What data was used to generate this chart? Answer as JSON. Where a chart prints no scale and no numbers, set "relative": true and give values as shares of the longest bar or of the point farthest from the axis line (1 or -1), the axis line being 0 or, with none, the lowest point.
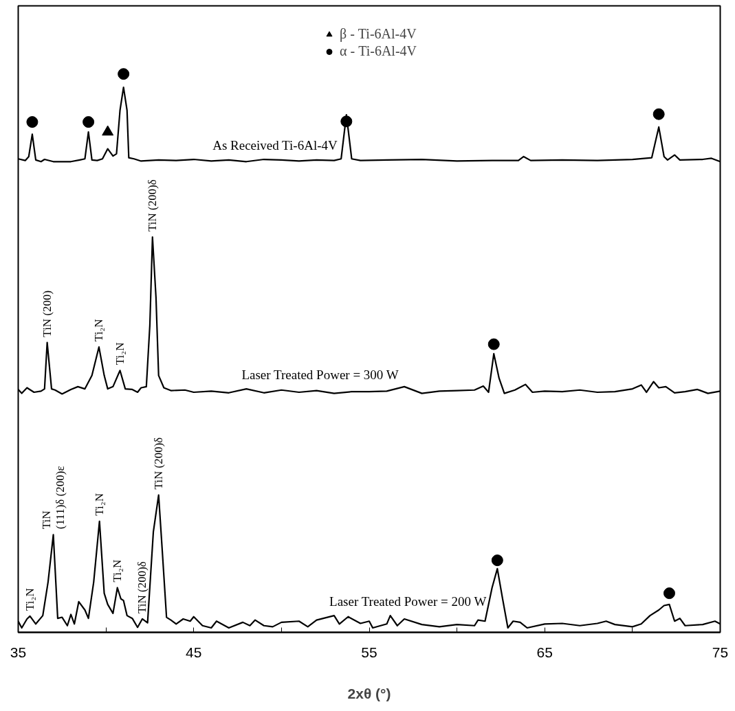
{
  "chart_data": {
    "type": "line",
    "relative": true,
    "xlabel": "2xθ (°)",
    "xlim": [
      35,
      75
    ],
    "xticks": [
      35,
      {
        "value": 40,
        "label": null
      },
      45,
      {
        "value": 50,
        "label": null
      },
      55,
      {
        "value": 60,
        "label": null
      },
      65,
      {
        "value": 70,
        "label": null
      },
      75
    ],
    "grid": false,
    "legend": "top",
    "line_style": "solid",
    "series": [
      {
        "name": "As Received Ti-6Al-4V",
        "color": "#000000",
        "x": [
          35.0,
          35.4,
          35.6,
          35.8,
          36.0,
          36.3,
          36.5,
          37,
          38,
          38.5,
          38.8,
          39.0,
          39.2,
          39.5,
          39.8,
          40.1,
          40.4,
          40.6,
          40.8,
          41.0,
          41.2,
          41.3,
          41.6,
          42,
          43,
          44,
          45,
          46,
          47,
          48,
          49,
          50,
          51,
          52,
          53,
          53.4,
          53.7,
          54.0,
          54.5,
          56,
          58,
          60,
          62,
          63.5,
          63.8,
          64.2,
          66,
          68,
          70,
          71.1,
          71.5,
          71.8,
          72.0,
          72.4,
          72.7,
          74,
          74.5,
          75
        ],
        "values": [
          0.848,
          0.845,
          0.852,
          0.892,
          0.846,
          0.843,
          0.847,
          0.843,
          0.843,
          0.846,
          0.848,
          0.896,
          0.846,
          0.845,
          0.848,
          0.866,
          0.853,
          0.857,
          0.935,
          0.976,
          0.935,
          0.85,
          0.848,
          0.844,
          0.846,
          0.845,
          0.847,
          0.844,
          0.846,
          0.843,
          0.847,
          0.846,
          0.844,
          0.846,
          0.845,
          0.848,
          0.927,
          0.848,
          0.845,
          0.846,
          0.847,
          0.844,
          0.845,
          0.845,
          0.852,
          0.845,
          0.846,
          0.845,
          0.847,
          0.85,
          0.905,
          0.852,
          0.846,
          0.855,
          0.846,
          0.847,
          0.849,
          0.843
        ]
      },
      {
        "name": "Laser Treated Power = 300 W",
        "color": "#000000",
        "x": [
          35.0,
          35.2,
          35.5,
          35.9,
          36.3,
          36.5,
          36.65,
          36.9,
          37.1,
          37.5,
          38.0,
          38.4,
          38.8,
          39.2,
          39.6,
          39.9,
          40.1,
          40.4,
          40.8,
          41.1,
          41.5,
          41.8,
          42.0,
          42.3,
          42.5,
          42.65,
          42.85,
          43.0,
          43.3,
          43.7,
          44.5,
          45,
          46,
          47,
          48,
          49,
          50,
          51,
          52,
          53,
          54,
          55,
          56,
          57,
          58,
          59,
          60,
          61,
          61.5,
          61.8,
          62.1,
          62.4,
          62.7,
          63.3,
          63.9,
          64.3,
          65,
          66,
          67,
          68,
          69,
          70,
          70.5,
          70.8,
          71.2,
          71.5,
          71.9,
          72.4,
          73,
          73.7,
          74.3,
          75
        ],
        "values": [
          0.435,
          0.428,
          0.438,
          0.43,
          0.432,
          0.436,
          0.519,
          0.436,
          0.434,
          0.427,
          0.435,
          0.44,
          0.436,
          0.46,
          0.511,
          0.46,
          0.436,
          0.44,
          0.469,
          0.436,
          0.435,
          0.43,
          0.438,
          0.44,
          0.55,
          0.708,
          0.6,
          0.46,
          0.438,
          0.433,
          0.434,
          0.43,
          0.432,
          0.429,
          0.436,
          0.429,
          0.434,
          0.43,
          0.433,
          0.428,
          0.431,
          0.431,
          0.432,
          0.44,
          0.428,
          0.432,
          0.433,
          0.434,
          0.441,
          0.43,
          0.499,
          0.455,
          0.428,
          0.434,
          0.444,
          0.43,
          0.432,
          0.431,
          0.434,
          0.43,
          0.431,
          0.436,
          0.443,
          0.43,
          0.449,
          0.438,
          0.44,
          0.429,
          0.431,
          0.435,
          0.428,
          0.432
        ]
      },
      {
        "name": "Laser Treated Power = 200 W",
        "color": "#000000",
        "x": [
          35.0,
          35.2,
          35.5,
          35.67,
          36.0,
          36.4,
          36.7,
          37.0,
          37.25,
          37.5,
          37.8,
          38.0,
          38.2,
          38.45,
          38.8,
          39.0,
          39.3,
          39.63,
          39.9,
          40.1,
          40.4,
          40.65,
          40.85,
          41.0,
          41.2,
          41.5,
          41.8,
          42.07,
          42.37,
          42.7,
          43.0,
          43.2,
          43.45,
          43.7,
          44.0,
          44.4,
          44.8,
          45.0,
          45.5,
          46,
          46.3,
          47,
          47.8,
          48.2,
          48.5,
          49,
          49.5,
          50,
          51,
          51.5,
          52,
          53,
          53.3,
          53.8,
          54.5,
          55,
          55.2,
          56,
          56.2,
          56.6,
          57,
          58,
          59,
          60,
          61,
          61.2,
          61.6,
          62.0,
          62.3,
          62.6,
          62.9,
          63.2,
          63.6,
          64,
          65,
          66,
          67,
          68,
          68.5,
          69,
          70,
          70.5,
          71,
          71.5,
          71.8,
          72.1,
          72.4,
          72.7,
          73,
          74,
          74.7,
          75
        ],
        "values": [
          0.02,
          0.008,
          0.024,
          0.029,
          0.015,
          0.03,
          0.09,
          0.175,
          0.025,
          0.027,
          0.012,
          0.032,
          0.015,
          0.055,
          0.04,
          0.025,
          0.09,
          0.199,
          0.07,
          0.05,
          0.034,
          0.08,
          0.06,
          0.057,
          0.03,
          0.025,
          0.009,
          0.024,
          0.017,
          0.18,
          0.246,
          0.15,
          0.027,
          0.022,
          0.015,
          0.024,
          0.02,
          0.028,
          0.012,
          0.008,
          0.02,
          0.008,
          0.018,
          0.012,
          0.022,
          0.012,
          0.01,
          0.018,
          0.02,
          0.01,
          0.022,
          0.03,
          0.015,
          0.028,
          0.016,
          0.02,
          0.008,
          0.015,
          0.03,
          0.012,
          0.024,
          0.014,
          0.01,
          0.014,
          0.012,
          0.022,
          0.02,
          0.08,
          0.114,
          0.06,
          0.008,
          0.02,
          0.018,
          0.008,
          0.015,
          0.016,
          0.012,
          0.016,
          0.02,
          0.014,
          0.01,
          0.015,
          0.03,
          0.04,
          0.048,
          0.05,
          0.02,
          0.025,
          0.012,
          0.014,
          0.02,
          0.015
        ]
      },
      {
        "name": "β - Ti-6Al-4V",
        "type": "scatter",
        "marker": "triangle",
        "color": "#000000",
        "x": [
          40.1
        ],
        "values": [
          0.896
        ]
      },
      {
        "name": "α - Ti-6Al-4V",
        "type": "scatter",
        "marker": "circle",
        "color": "#000000",
        "x": [
          35.8,
          39.0,
          41.0,
          53.7,
          71.5,
          62.1,
          62.3,
          72.1
        ],
        "values": [
          0.914,
          0.914,
          1.0,
          0.915,
          0.928,
          0.516,
          0.129,
          0.07
        ]
      }
    ],
    "annotations": [
      {
        "text": "TiN (200)",
        "x": 36.65,
        "y": 0.519
      },
      {
        "text": "Ti₂N",
        "x": 39.6,
        "y": 0.511
      },
      {
        "text": "Ti₂N",
        "x": 40.8,
        "y": 0.469
      },
      {
        "text": "TiN (200)δ",
        "x": 42.65,
        "y": 0.708
      },
      {
        "text": "Ti₂N",
        "x": 35.67,
        "y": 0.029
      },
      {
        "text": "TiN\n(111)δ  (200)ε",
        "x": 37.0,
        "y": 0.175
      },
      {
        "text": "Ti₂N",
        "x": 39.63,
        "y": 0.199
      },
      {
        "text": "Ti₂N",
        "x": 40.65,
        "y": 0.08
      },
      {
        "text": "TiN (200)δ",
        "x": 42.07,
        "y": 0.024
      },
      {
        "text": "TiN (200)δ",
        "x": 43.0,
        "y": 0.246
      }
    ]
  }
}
